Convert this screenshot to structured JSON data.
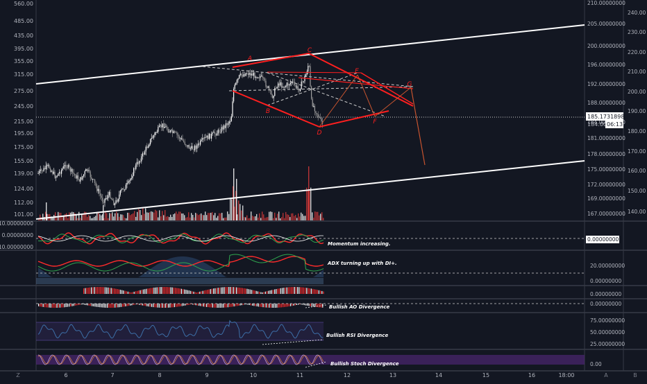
{
  "chart_data": {
    "type": "line",
    "left_axis": {
      "ticks": [
        "560.00",
        "485.00",
        "435.00",
        "395.00",
        "355.00",
        "315.00",
        "275.00",
        "245.00",
        "215.00",
        "195.00",
        "175.00",
        "155.00",
        "139.00",
        "124.00",
        "112.00",
        "101.00"
      ]
    },
    "right_axis_a": {
      "ticks": [
        "210.00000000",
        "205.00000000",
        "200.00000000",
        "196.00000000",
        "192.00000000",
        "188.00000000",
        "184.00000000",
        "181.00000000",
        "178.00000000",
        "175.00000000",
        "172.00000000",
        "169.00000000",
        "167.00000000"
      ],
      "price_label": "185.17318980",
      "price_label_low": "184.00"
    },
    "right_axis_b": {
      "ticks": [
        "240.00",
        "230.00",
        "220.00",
        "210.00",
        "200.00",
        "190.00",
        "180.00",
        "170.00",
        "160.00",
        "150.00",
        "140.00"
      ],
      "timer": "06:13"
    },
    "x_axis": {
      "ticks": [
        "6",
        "7",
        "8",
        "9",
        "10",
        "11",
        "12",
        "13",
        "14",
        "15",
        "16",
        "18:00"
      ]
    },
    "pattern_points": [
      "A",
      "B",
      "C",
      "D",
      "E",
      "F",
      "G"
    ],
    "panels": [
      {
        "name": "Momentum",
        "ticks": [
          "10.00000000",
          "0.00000000",
          "-10.00000000"
        ],
        "right_ticks": [
          "0.00000000"
        ],
        "annotation": "Momentum increasing."
      },
      {
        "name": "ADX/DMI",
        "ticks": [],
        "right_ticks": [
          "20.00000000",
          "0.00000000"
        ],
        "annotation": "ADX turning up with DI+."
      },
      {
        "name": "AO",
        "ticks": [],
        "right_ticks": [
          "0.00000000",
          "0.00000000"
        ],
        "annotation": "Bullish AO Divergence"
      },
      {
        "name": "RSI",
        "ticks": [],
        "right_ticks": [
          "75.00000000",
          "50.00000000",
          "25.00000000"
        ],
        "annotation": "Bullish RSI Divergence"
      },
      {
        "name": "Stochastic",
        "ticks": [],
        "right_ticks": [
          "0.00"
        ],
        "annotation": "Bullish Stoch Divergence"
      }
    ],
    "corner_labels": {
      "left": "Z",
      "right_a": "A",
      "right_b": "B"
    }
  },
  "colors": {
    "background": "#131722",
    "candle": "#e6e6e6",
    "pattern": "#ff1f1f",
    "projection": "#c7542f",
    "channel": "#ffffff",
    "grid": "#363a45",
    "ma_green": "#2fa84f",
    "ma_red": "#ff2b2b",
    "rsi_blue": "#3d6fa8",
    "stoch_purple": "#5b2a86"
  }
}
